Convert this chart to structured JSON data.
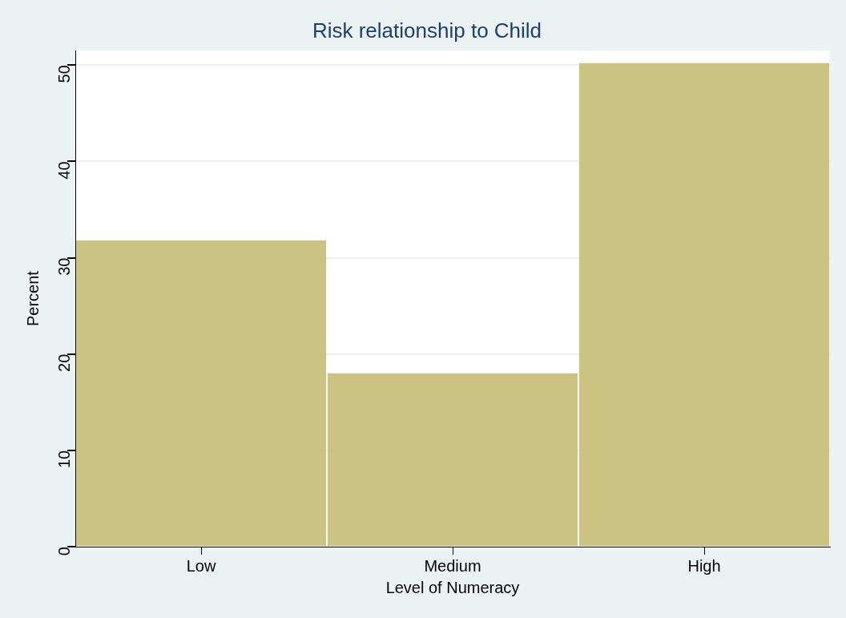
{
  "chart_data": {
    "type": "bar",
    "title": "Risk relationship to Child",
    "xlabel": "Level of Numeracy",
    "ylabel": "Percent",
    "categories": [
      "Low",
      "Medium",
      "High"
    ],
    "values": [
      31.8,
      18.0,
      50.2
    ],
    "color": "#cbc382",
    "ylim": [
      0,
      51.5
    ],
    "yticks": [
      0,
      10,
      20,
      30,
      40,
      50
    ],
    "grid": "y"
  }
}
